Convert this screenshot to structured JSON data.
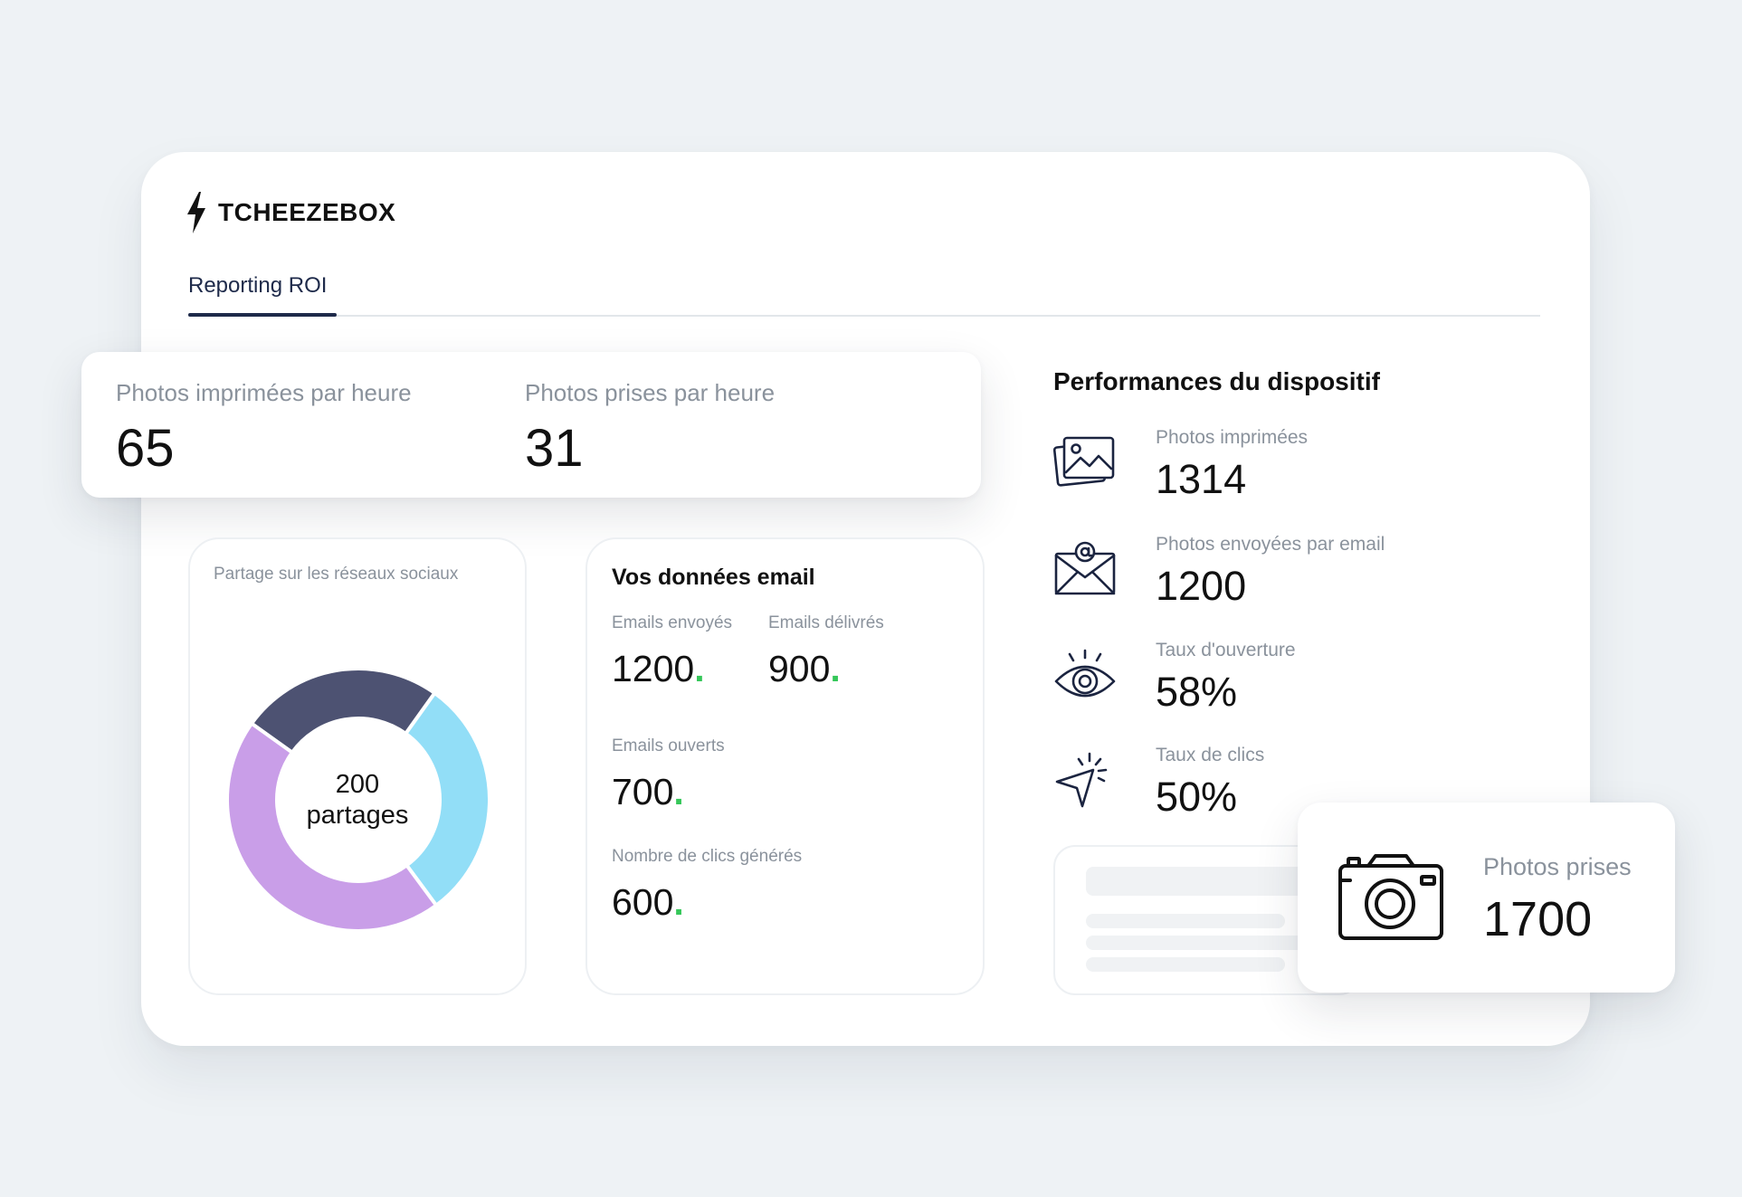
{
  "brand": {
    "name": "TCHEEZEBOX"
  },
  "tabs": [
    {
      "label": "Reporting ROI"
    }
  ],
  "kpi": [
    {
      "label": "Photos imprimées par heure",
      "value": "65"
    },
    {
      "label": "Photos prises par heure",
      "value": "31"
    }
  ],
  "social": {
    "title": "Partage sur les réseaux sociaux",
    "center_value": "200",
    "center_label": "partages",
    "colors": [
      "#4d5272",
      "#92def7",
      "#c99ee8"
    ]
  },
  "chart_data": {
    "type": "pie",
    "title": "Partage sur les réseaux sociaux",
    "categories": [
      "",
      "",
      ""
    ],
    "values": [
      25,
      30,
      45
    ],
    "total_label": "200 partages"
  },
  "email": {
    "title": "Vos données email",
    "sent": {
      "label": "Emails envoyés",
      "value": "1200"
    },
    "delivered": {
      "label": "Emails délivrés",
      "value": "900"
    },
    "opened": {
      "label": "Emails ouverts",
      "value": "700"
    },
    "clicks": {
      "label": "Nombre de clics générés",
      "value": "600"
    },
    "dot": ".",
    "accent": "#35c759"
  },
  "performance": {
    "title": "Performances du dispositif",
    "items": [
      {
        "icon": "photos-icon",
        "label": "Photos imprimées",
        "value": "1314"
      },
      {
        "icon": "email-at-icon",
        "label": "Photos envoyées par email",
        "value": "1200"
      },
      {
        "icon": "eye-icon",
        "label": "Taux d'ouverture",
        "value": "58%"
      },
      {
        "icon": "cursor-click-icon",
        "label": "Taux de clics",
        "value": "50%"
      }
    ]
  },
  "photos_prises": {
    "icon": "camera-icon",
    "label": "Photos prises",
    "value": "1700"
  }
}
